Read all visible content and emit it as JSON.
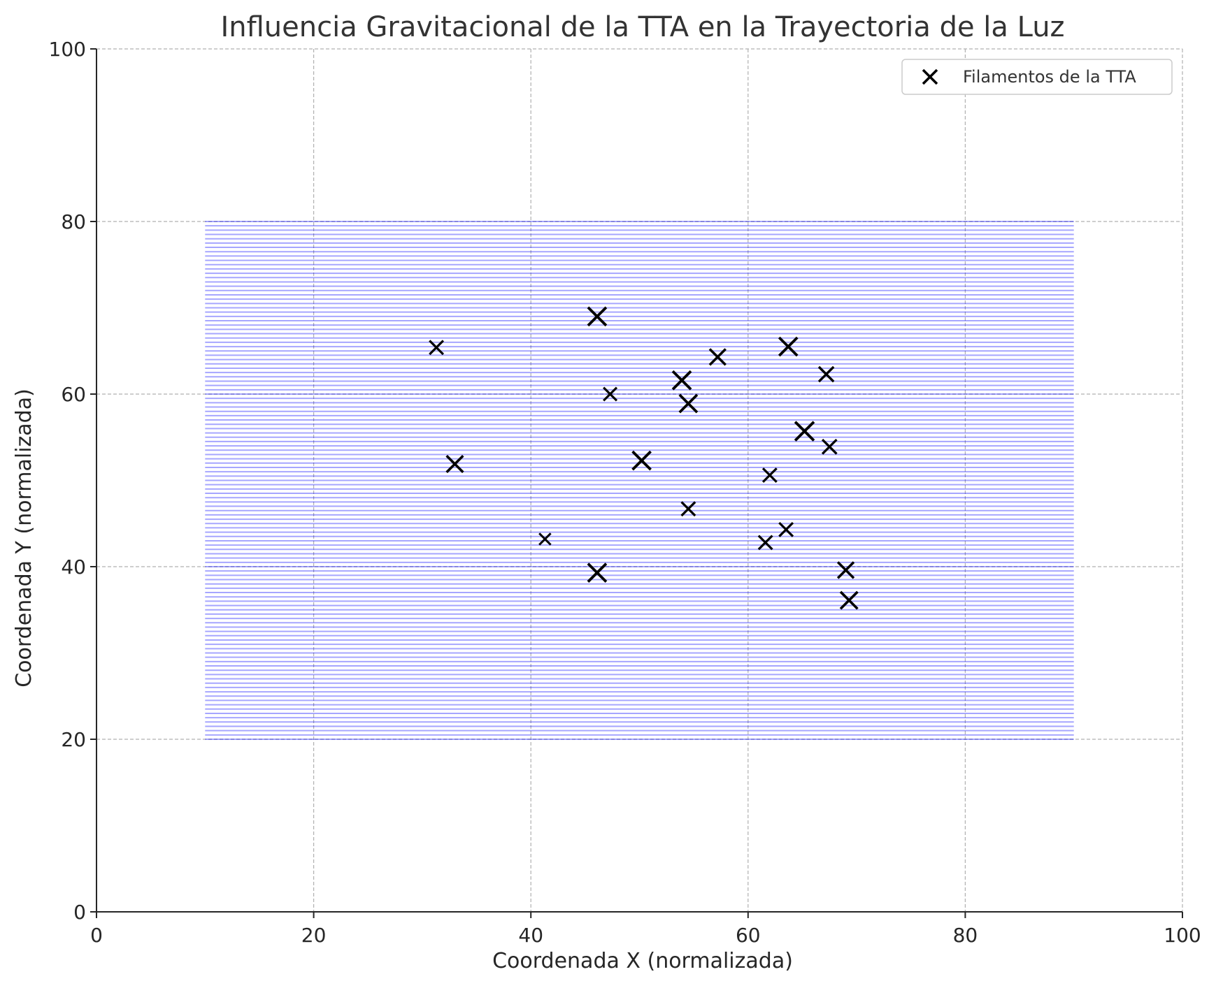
{
  "chart_data": {
    "type": "scatter",
    "title": "Influencia Gravitacional de la TTA en la Trayectoria de la Luz",
    "xlabel": "Coordenada X (normalizada)",
    "ylabel": "Coordenada Y (normalizada)",
    "xlim": [
      0,
      100
    ],
    "ylim": [
      0,
      100
    ],
    "x_ticks": [
      "0",
      "20",
      "40",
      "60",
      "80",
      "100"
    ],
    "y_ticks": [
      "0",
      "20",
      "40",
      "60",
      "80",
      "100"
    ],
    "grid": true,
    "legend": {
      "position": "top-right",
      "entries": [
        "Filamentos de la TTA"
      ]
    },
    "region": {
      "x": [
        10,
        90
      ],
      "y": [
        20,
        80
      ],
      "line_step": 0.5,
      "color": "#0000ff",
      "opacity": 0.35
    },
    "series": [
      {
        "name": "Filamentos de la TTA",
        "marker": "x",
        "color": "#000000",
        "points": [
          {
            "x": 46.1,
            "y": 69.0,
            "size": 1.0
          },
          {
            "x": 31.3,
            "y": 65.4,
            "size": 0.6
          },
          {
            "x": 57.2,
            "y": 64.3,
            "size": 0.8
          },
          {
            "x": 63.7,
            "y": 65.5,
            "size": 1.0
          },
          {
            "x": 67.2,
            "y": 62.3,
            "size": 0.7
          },
          {
            "x": 53.9,
            "y": 61.6,
            "size": 1.0
          },
          {
            "x": 47.3,
            "y": 60.0,
            "size": 0.55
          },
          {
            "x": 54.5,
            "y": 58.9,
            "size": 0.95
          },
          {
            "x": 65.2,
            "y": 55.7,
            "size": 1.05
          },
          {
            "x": 67.5,
            "y": 53.9,
            "size": 0.65
          },
          {
            "x": 33.0,
            "y": 51.9,
            "size": 0.85
          },
          {
            "x": 50.2,
            "y": 52.3,
            "size": 1.0
          },
          {
            "x": 62.0,
            "y": 50.6,
            "size": 0.6
          },
          {
            "x": 54.5,
            "y": 46.7,
            "size": 0.6
          },
          {
            "x": 41.3,
            "y": 43.2,
            "size": 0.4
          },
          {
            "x": 63.5,
            "y": 44.3,
            "size": 0.6
          },
          {
            "x": 61.6,
            "y": 42.8,
            "size": 0.6
          },
          {
            "x": 46.1,
            "y": 39.3,
            "size": 1.0
          },
          {
            "x": 69.0,
            "y": 39.6,
            "size": 0.8
          },
          {
            "x": 69.3,
            "y": 36.1,
            "size": 0.9
          }
        ]
      }
    ]
  }
}
